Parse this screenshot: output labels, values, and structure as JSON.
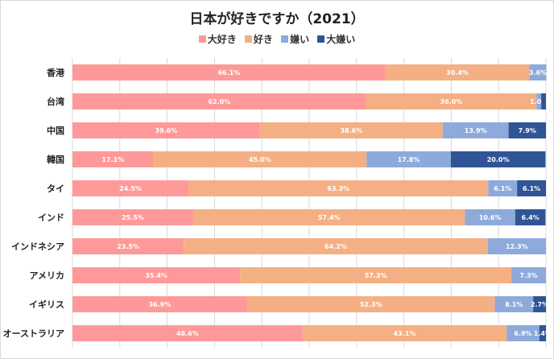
{
  "chart_data": {
    "type": "bar",
    "orientation": "horizontal",
    "stacked": true,
    "title": "日本が好きですか（2021）",
    "xlabel": "",
    "ylabel": "",
    "xlim": [
      0,
      100
    ],
    "grid": true,
    "legend_position": "top",
    "categories": [
      "香港",
      "台湾",
      "中国",
      "韓国",
      "タイ",
      "インド",
      "インドネシア",
      "アメリカ",
      "イギリス",
      "オーストラリア"
    ],
    "series": [
      {
        "name": "大好き",
        "color": "#ff9999",
        "values": [
          66.1,
          62.0,
          39.6,
          17.1,
          24.5,
          25.5,
          23.5,
          35.4,
          36.9,
          48.6
        ]
      },
      {
        "name": "好き",
        "color": "#f4b084",
        "values": [
          30.4,
          36.0,
          38.6,
          45.0,
          63.3,
          57.4,
          64.2,
          57.3,
          52.3,
          43.1
        ]
      },
      {
        "name": "嫌い",
        "color": "#8eaadb",
        "values": [
          3.6,
          1.0,
          13.9,
          17.8,
          6.1,
          10.6,
          12.3,
          7.3,
          8.1,
          6.9
        ]
      },
      {
        "name": "大嫌い",
        "color": "#2f5597",
        "values": [
          0,
          1.0,
          7.9,
          20.0,
          6.1,
          6.4,
          0,
          0,
          2.7,
          1.4
        ]
      }
    ],
    "labels": [
      [
        "66.1%",
        "62.0%",
        "39.6%",
        "17.1%",
        "24.5%",
        "25.5%",
        "23.5%",
        "35.4%",
        "36.9%",
        "48.6%"
      ],
      [
        "30.4%",
        "36.0%",
        "38.6%",
        "45.0%",
        "63.3%",
        "57.4%",
        "64.2%",
        "57.3%",
        "52.3%",
        "43.1%"
      ],
      [
        "3.6%",
        "1.0%",
        "13.9%",
        "17.8%",
        "6.1%",
        "10.6%",
        "12.3%",
        "7.3%",
        "8.1%",
        "6.9%"
      ],
      [
        "",
        "",
        "7.9%",
        "20.0%",
        "6.1%",
        "6.4%",
        "",
        "",
        "2.7%",
        "1.4%"
      ]
    ]
  }
}
